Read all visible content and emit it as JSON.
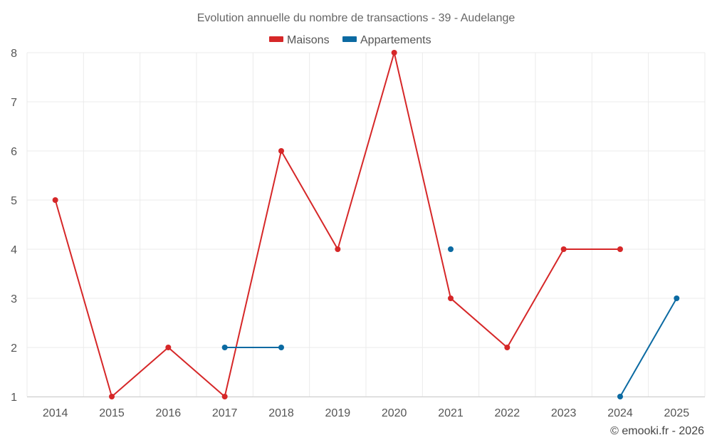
{
  "chart_data": {
    "type": "line",
    "title": "Evolution annuelle du nombre de transactions - 39 - Audelange",
    "categories": [
      "2014",
      "2015",
      "2016",
      "2017",
      "2018",
      "2019",
      "2020",
      "2021",
      "2022",
      "2023",
      "2024",
      "2025"
    ],
    "ylim": [
      1,
      8
    ],
    "yticks": [
      "1",
      "2",
      "3",
      "4",
      "5",
      "6",
      "7",
      "8"
    ],
    "grid": true,
    "legend_position": "top-center",
    "series": [
      {
        "name": "Maisons",
        "color": "#d62728",
        "values": [
          5,
          1,
          2,
          1,
          6,
          4,
          8,
          3,
          2,
          4,
          4,
          null
        ]
      },
      {
        "name": "Appartements",
        "color": "#0b6aa2",
        "values": [
          null,
          null,
          null,
          2,
          2,
          null,
          null,
          4,
          null,
          null,
          1,
          3
        ]
      }
    ],
    "credit": "© emooki.fr - 2026"
  }
}
